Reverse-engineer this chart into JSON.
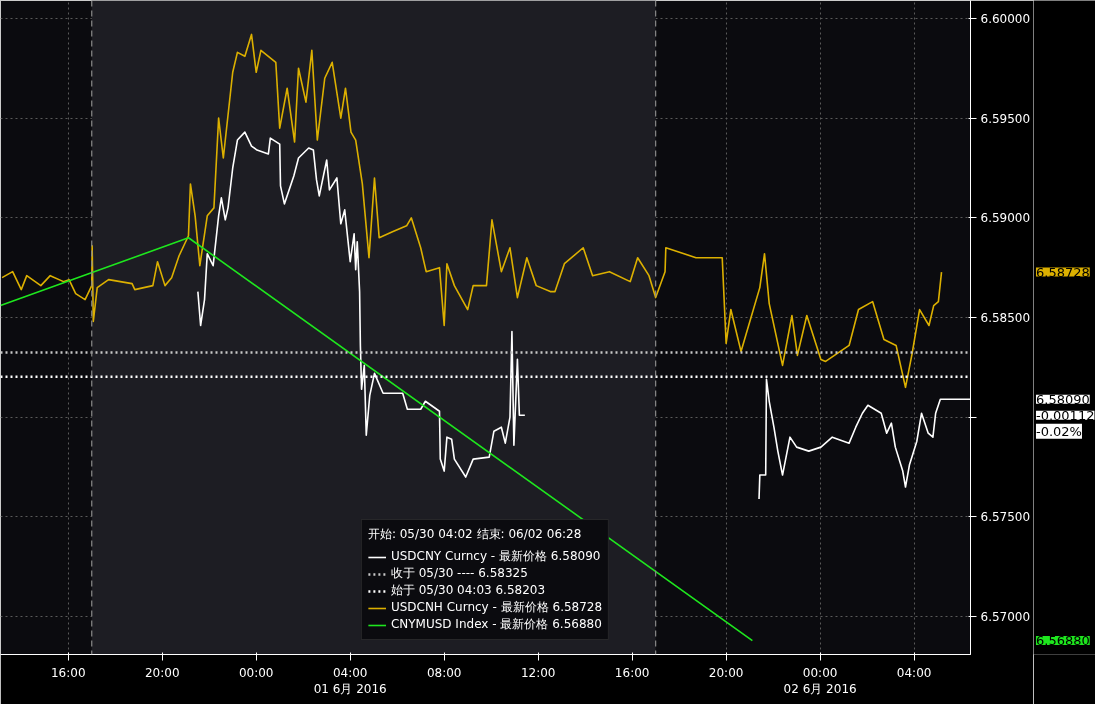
{
  "chart_data": {
    "type": "line",
    "legend_title": "开始: 05/30 04:02 结束: 06/02 06:28",
    "xlim": [
      "2016-05-31T13:07",
      "2016-06-02T06:24"
    ],
    "ylim": [
      6.5681,
      6.6009
    ],
    "xticks": [
      {
        "value": "2016-05-31T16:00",
        "label": "16:00"
      },
      {
        "value": "2016-05-31T20:00",
        "label": "20:00"
      },
      {
        "value": "2016-06-01T00:00",
        "label": "00:00"
      },
      {
        "value": "2016-06-01T04:00",
        "label": "04:00\n01 6月 2016"
      },
      {
        "value": "2016-06-01T08:00",
        "label": "08:00"
      },
      {
        "value": "2016-06-01T12:00",
        "label": "12:00"
      },
      {
        "value": "2016-06-01T16:00",
        "label": "16:00"
      },
      {
        "value": "2016-06-01T20:00",
        "label": "20:00"
      },
      {
        "value": "2016-06-02T00:00",
        "label": "00:00\n02 6月 2016"
      },
      {
        "value": "2016-06-02T04:00",
        "label": "04:00"
      }
    ],
    "yticks": [
      {
        "value": 6.57,
        "label": "6.57000"
      },
      {
        "value": 6.575,
        "label": "6.57500"
      },
      {
        "value": 6.58,
        "label": null
      },
      {
        "value": 6.585,
        "label": "6.58500"
      },
      {
        "value": 6.59,
        "label": "6.59000"
      },
      {
        "value": 6.595,
        "label": "6.59500"
      },
      {
        "value": 6.6,
        "label": "6.60000"
      }
    ],
    "grid": true,
    "legend": "bottom",
    "line_style": "solid",
    "series": [
      {
        "name": "USDCNY Curncy - 最新价格 6.58090",
        "color": "#ffffff",
        "x": [
          "2016-05-31T21:31",
          "2016-05-31T21:38",
          "2016-05-31T21:48",
          "2016-05-31T21:55",
          "2016-05-31T22:10",
          "2016-05-31T22:24",
          "2016-05-31T22:31",
          "2016-05-31T22:41",
          "2016-05-31T22:48",
          "2016-05-31T23:00",
          "2016-05-31T23:12",
          "2016-05-31T23:31",
          "2016-05-31T23:48",
          "2016-06-01T00:02",
          "2016-06-01T00:31",
          "2016-06-01T00:36",
          "2016-06-01T01:00",
          "2016-06-01T01:02",
          "2016-06-01T01:12",
          "2016-06-01T01:36",
          "2016-06-01T01:48",
          "2016-06-01T02:14",
          "2016-06-01T02:26",
          "2016-06-01T02:34",
          "2016-06-01T02:41",
          "2016-06-01T03:00",
          "2016-06-01T03:07",
          "2016-06-01T03:26",
          "2016-06-01T03:36",
          "2016-06-01T03:46",
          "2016-06-01T04:00",
          "2016-06-01T04:10",
          "2016-06-01T04:14",
          "2016-06-01T04:18",
          "2016-06-01T04:24",
          "2016-06-01T04:26",
          "2016-06-01T04:29",
          "2016-06-01T04:36",
          "2016-06-01T04:41",
          "2016-06-01T04:50",
          "2016-06-01T05:02",
          "2016-06-01T05:24",
          "2016-06-01T06:00",
          "2016-06-01T06:14",
          "2016-06-01T06:26",
          "2016-06-01T07:00",
          "2016-06-01T07:12",
          "2016-06-01T07:48",
          "2016-06-01T07:50",
          "2016-06-01T08:00",
          "2016-06-01T08:07",
          "2016-06-01T08:19",
          "2016-06-01T08:26",
          "2016-06-01T08:55",
          "2016-06-01T09:14",
          "2016-06-01T09:55",
          "2016-06-01T10:07",
          "2016-06-01T10:26",
          "2016-06-01T10:36",
          "2016-06-01T10:48",
          "2016-06-01T10:53",
          "2016-06-01T10:58",
          "2016-06-01T11:07",
          "2016-06-01T11:12",
          "2016-06-01T11:26",
          "2016-06-01T16:00",
          "2016-06-01T21:24",
          "2016-06-01T21:26",
          "2016-06-01T21:41",
          "2016-06-01T21:43",
          "2016-06-01T21:50",
          "2016-06-01T22:02",
          "2016-06-01T22:12",
          "2016-06-01T22:24",
          "2016-06-01T22:43",
          "2016-06-01T23:00",
          "2016-06-01T23:31",
          "2016-06-02T00:02",
          "2016-06-02T00:31",
          "2016-06-02T01:14",
          "2016-06-02T01:31",
          "2016-06-02T01:48",
          "2016-06-02T02:02",
          "2016-06-02T02:36",
          "2016-06-02T02:50",
          "2016-06-02T03:02",
          "2016-06-02T03:12",
          "2016-06-02T03:31",
          "2016-06-02T03:38",
          "2016-06-02T03:48",
          "2016-06-02T04:07",
          "2016-06-02T04:19",
          "2016-06-02T04:36",
          "2016-06-02T04:48",
          "2016-06-02T04:55",
          "2016-06-02T05:07",
          "2016-06-02T06:24"
        ],
        "values": [
          6.5863,
          6.5846,
          6.5859,
          6.5882,
          6.5876,
          6.5901,
          6.591,
          6.5899,
          6.5905,
          6.5925,
          6.5939,
          6.5943,
          6.5936,
          6.5934,
          6.5932,
          6.594,
          6.5937,
          6.5916,
          6.5907,
          6.5921,
          6.593,
          6.5935,
          6.5934,
          6.5919,
          6.5911,
          6.5929,
          6.5914,
          6.592,
          6.5897,
          6.5904,
          6.5878,
          6.5892,
          6.5874,
          6.5888,
          6.5863,
          6.5836,
          6.5814,
          6.5826,
          6.5791,
          6.5811,
          6.5822,
          6.5812,
          6.5812,
          6.5812,
          6.5804,
          6.5804,
          6.5808,
          6.5803,
          6.5779,
          6.5773,
          6.579,
          6.5789,
          6.5779,
          6.577,
          6.5779,
          6.578,
          6.5793,
          6.5795,
          6.5787,
          6.58,
          6.5843,
          6.5786,
          6.5829,
          6.5801,
          6.5801,
          null,
          6.5759,
          6.5771,
          6.5771,
          6.5819,
          6.5808,
          6.5795,
          6.5783,
          6.5771,
          6.579,
          6.5785,
          6.5783,
          6.5785,
          6.579,
          6.5787,
          6.5795,
          6.5802,
          6.5806,
          6.5802,
          6.5792,
          6.5797,
          6.5785,
          6.5773,
          6.5765,
          6.5776,
          6.5788,
          6.5802,
          6.5792,
          6.579,
          6.5802,
          6.5809,
          6.5809
        ]
      },
      {
        "name": "USDCNH Curncy - 最新价格 6.58728",
        "color": "#dcb000",
        "x": [
          "2016-05-31T13:11",
          "2016-05-31T13:38",
          "2016-05-31T14:00",
          "2016-05-31T14:14",
          "2016-05-31T14:50",
          "2016-05-31T15:14",
          "2016-05-31T15:48",
          "2016-05-31T16:02",
          "2016-05-31T16:19",
          "2016-05-31T16:43",
          "2016-05-31T17:00",
          "2016-05-31T17:01",
          "2016-05-31T17:04",
          "2016-05-31T17:14",
          "2016-05-31T17:43",
          "2016-05-31T18:43",
          "2016-05-31T18:50",
          "2016-05-31T19:36",
          "2016-05-31T19:48",
          "2016-05-31T20:07",
          "2016-05-31T20:24",
          "2016-05-31T20:43",
          "2016-05-31T21:07",
          "2016-05-31T21:12",
          "2016-05-31T21:24",
          "2016-05-31T21:36",
          "2016-05-31T21:55",
          "2016-05-31T22:12",
          "2016-05-31T22:24",
          "2016-05-31T22:36",
          "2016-05-31T23:00",
          "2016-05-31T23:12",
          "2016-05-31T23:31",
          "2016-05-31T23:48",
          "2016-06-01T00:00",
          "2016-06-01T00:12",
          "2016-06-01T00:50",
          "2016-06-01T01:00",
          "2016-06-01T01:19",
          "2016-06-01T01:38",
          "2016-06-01T01:48",
          "2016-06-01T02:07",
          "2016-06-01T02:22",
          "2016-06-01T02:36",
          "2016-06-01T02:55",
          "2016-06-01T03:14",
          "2016-06-01T03:36",
          "2016-06-01T03:48",
          "2016-06-01T04:02",
          "2016-06-01T04:14",
          "2016-06-01T04:31",
          "2016-06-01T04:48",
          "2016-06-01T05:02",
          "2016-06-01T05:14",
          "2016-06-01T05:48",
          "2016-06-01T06:24",
          "2016-06-01T06:36",
          "2016-06-01T07:00",
          "2016-06-01T07:14",
          "2016-06-01T07:48",
          "2016-06-01T08:00",
          "2016-06-01T08:07",
          "2016-06-01T08:26",
          "2016-06-01T09:00",
          "2016-06-01T09:14",
          "2016-06-01T09:48",
          "2016-06-01T10:02",
          "2016-06-01T10:26",
          "2016-06-01T10:48",
          "2016-06-01T11:07",
          "2016-06-01T11:31",
          "2016-06-01T11:55",
          "2016-06-01T12:31",
          "2016-06-01T12:43",
          "2016-06-01T13:07",
          "2016-06-01T13:55",
          "2016-06-01T14:19",
          "2016-06-01T15:02",
          "2016-06-01T15:55",
          "2016-06-01T16:14",
          "2016-06-01T16:43",
          "2016-06-01T17:00",
          "2016-06-01T17:24",
          "2016-06-01T17:26",
          "2016-06-01T18:43",
          "2016-06-01T19:50",
          "2016-06-01T20:00",
          "2016-06-01T20:12",
          "2016-06-01T20:38",
          "2016-06-01T20:50",
          "2016-06-01T21:26",
          "2016-06-01T21:38",
          "2016-06-01T21:50",
          "2016-06-01T22:24",
          "2016-06-01T22:48",
          "2016-06-01T23:02",
          "2016-06-01T23:26",
          "2016-06-02T00:02",
          "2016-06-02T00:14",
          "2016-06-02T01:14",
          "2016-06-02T01:38",
          "2016-06-02T02:14",
          "2016-06-02T02:43",
          "2016-06-02T03:14",
          "2016-06-02T03:38",
          "2016-06-02T03:55",
          "2016-06-02T04:14",
          "2016-06-02T04:38",
          "2016-06-02T04:50",
          "2016-06-02T05:02",
          "2016-06-02T05:10"
        ],
        "values": [
          6.587,
          6.5873,
          6.5864,
          6.5871,
          6.5866,
          6.5871,
          6.5868,
          6.5869,
          6.5862,
          6.5859,
          6.5866,
          6.5886,
          6.5848,
          6.5865,
          6.5869,
          6.5867,
          6.5864,
          6.5866,
          6.5878,
          6.5866,
          6.587,
          6.5881,
          6.5891,
          6.5917,
          6.5901,
          6.5876,
          6.5901,
          6.5905,
          6.595,
          6.593,
          6.5973,
          6.5983,
          6.5981,
          6.5992,
          6.5973,
          6.5984,
          6.5978,
          6.5945,
          6.5965,
          6.5938,
          6.5975,
          6.5958,
          6.5984,
          6.5939,
          6.597,
          6.5978,
          6.595,
          6.5965,
          6.5943,
          6.5939,
          6.5917,
          6.588,
          6.592,
          6.589,
          6.5893,
          6.5896,
          6.59,
          6.5885,
          6.5873,
          6.5875,
          6.5846,
          6.5877,
          6.5866,
          6.5854,
          6.5866,
          6.5866,
          6.5899,
          6.5873,
          6.5885,
          6.586,
          6.588,
          6.5866,
          6.5863,
          6.5863,
          6.5877,
          6.5885,
          6.5871,
          6.5873,
          6.5868,
          6.588,
          6.5871,
          6.586,
          6.5873,
          6.5885,
          6.588,
          6.588,
          6.5837,
          6.5854,
          6.5833,
          6.5841,
          6.5865,
          6.5882,
          6.5857,
          6.5826,
          6.5851,
          6.5831,
          6.5851,
          6.5829,
          6.5828,
          6.5836,
          6.5854,
          6.5858,
          6.5839,
          6.5836,
          6.5815,
          6.5832,
          6.5854,
          6.5846,
          6.5856,
          6.5858,
          6.58728
        ]
      },
      {
        "name": "CNYMUSD Index - 最新价格 6.56880",
        "color": "#1ee61e",
        "x": [
          "2016-05-31T13:07",
          "2016-05-31T21:07",
          "2016-06-01T21:07"
        ],
        "values": [
          6.5856,
          6.589,
          6.5688
        ]
      }
    ],
    "ref_lines": [
      {
        "axis": "y",
        "value": 6.58325,
        "label": "收于 05/30 ---- 6.58325",
        "color": "#c8c8c8",
        "line_style": "dotted"
      },
      {
        "axis": "y",
        "value": 6.58203,
        "label": "始于 05/30 04:03 6.58203",
        "color": "#ffffff",
        "line_style": "dotted"
      },
      {
        "axis": "x",
        "value": "2016-05-31T17:00",
        "label": null,
        "color": "#8a8a8a",
        "line_style": "dashed"
      },
      {
        "axis": "x",
        "value": "2016-06-01T17:00",
        "label": null,
        "color": "#8a8a8a",
        "line_style": "dashed"
      }
    ],
    "bands": [
      {
        "axis": "x",
        "from": "2016-05-31T17:00",
        "to": "2016-06-01T17:00",
        "label": null,
        "color": "#1d1d23"
      }
    ],
    "annotations": [
      "6.58090",
      "-0.00112",
      "-0.02%",
      "6.58728",
      "6.56880"
    ]
  }
}
